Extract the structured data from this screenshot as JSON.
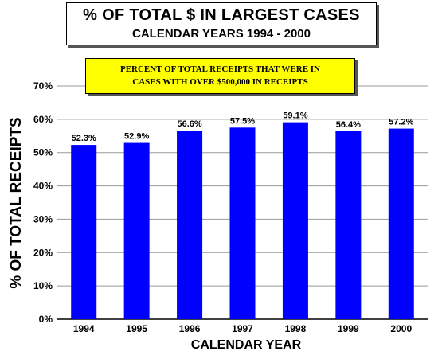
{
  "chart_data": {
    "type": "bar",
    "title": "% OF TOTAL $ IN LARGEST CASES",
    "subtitle": "CALENDAR YEARS 1994 - 2000",
    "annotation_lines": [
      "PERCENT OF TOTAL RECEIPTS THAT WERE IN",
      "CASES WITH OVER $500,000 IN RECEIPTS"
    ],
    "xlabel": "CALENDAR YEAR",
    "ylabel": "% OF TOTAL RECEIPTS",
    "categories": [
      "1994",
      "1995",
      "1996",
      "1997",
      "1998",
      "1999",
      "2000"
    ],
    "values": [
      52.3,
      52.9,
      56.6,
      57.5,
      59.1,
      56.4,
      57.2
    ],
    "data_labels": [
      "52.3%",
      "52.9%",
      "56.6%",
      "57.5%",
      "59.1%",
      "56.4%",
      "57.2%"
    ],
    "yticks": [
      0,
      10,
      20,
      30,
      40,
      50,
      60,
      70
    ],
    "ytick_labels": [
      "0%",
      "10%",
      "20%",
      "30%",
      "40%",
      "50%",
      "60%",
      "70%"
    ],
    "ylim": [
      0,
      70
    ],
    "grid": true,
    "bar_color": "#0000ff"
  }
}
